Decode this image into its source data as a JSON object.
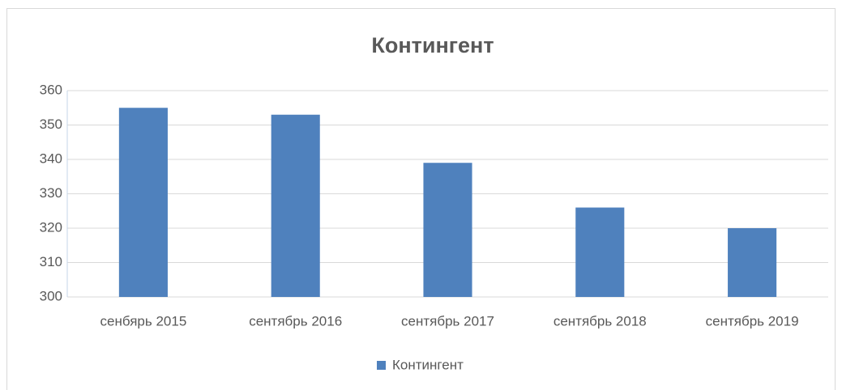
{
  "chart_data": {
    "type": "bar",
    "title": "Контингент",
    "categories": [
      "сенбярь 2015",
      "сентябрь 2016",
      "сентябрь 2017",
      "сентябрь 2018",
      "сентябрь 2019"
    ],
    "series": [
      {
        "name": "Контингент",
        "color": "#4f81bd",
        "values": [
          355,
          353,
          339,
          326,
          320
        ]
      }
    ],
    "ylim": [
      300,
      360
    ],
    "yticks": [
      300,
      310,
      320,
      330,
      340,
      350,
      360
    ],
    "grid": true,
    "legend": "bottom"
  }
}
